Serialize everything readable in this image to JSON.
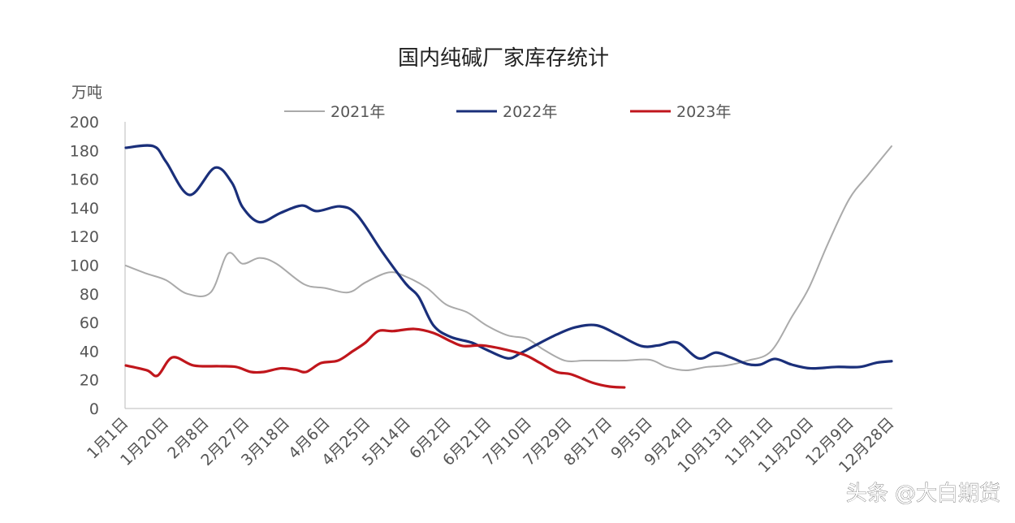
{
  "chart_data": {
    "type": "line",
    "title": "国内纯碱厂家库存统计",
    "ylabel": "万吨",
    "xlabel": "",
    "ylim": [
      0,
      200
    ],
    "yticks": [
      "0",
      "20",
      "40",
      "60",
      "80",
      "100",
      "120",
      "140",
      "160",
      "180",
      "200"
    ],
    "xtick_labels": [
      "1月1日",
      "1月20日",
      "2月8日",
      "2月27日",
      "3月18日",
      "4月6日",
      "4月25日",
      "5月14日",
      "6月2日",
      "6月21日",
      "7月10日",
      "7月29日",
      "8月17日",
      "9月5日",
      "9月24日",
      "10月13日",
      "11月1日",
      "11月20日",
      "12月9日",
      "12月28日"
    ],
    "xticks": [
      "01-01",
      "01-20",
      "02-08",
      "02-27",
      "03-18",
      "04-06",
      "04-25",
      "05-14",
      "06-02",
      "06-21",
      "07-10",
      "07-29",
      "08-17",
      "09-05",
      "09-24",
      "10-13",
      "11-01",
      "11-20",
      "12-09",
      "12-28"
    ],
    "grid": false,
    "legend_position": "top",
    "series": [
      {
        "name": "2021年",
        "color": "#aaaaaa",
        "points": [
          [
            "01-01",
            99.7
          ],
          [
            "01-11",
            94
          ],
          [
            "01-20",
            89.5
          ],
          [
            "01-30",
            80
          ],
          [
            "02-10",
            81
          ],
          [
            "02-18",
            108
          ],
          [
            "02-25",
            101
          ],
          [
            "03-05",
            105
          ],
          [
            "03-13",
            101
          ],
          [
            "03-26",
            86.7
          ],
          [
            "04-05",
            84
          ],
          [
            "04-16",
            81
          ],
          [
            "04-24",
            88
          ],
          [
            "05-05",
            95
          ],
          [
            "05-13",
            92
          ],
          [
            "05-23",
            84
          ],
          [
            "06-01",
            72.5
          ],
          [
            "06-11",
            67
          ],
          [
            "06-20",
            58
          ],
          [
            "06-30",
            51
          ],
          [
            "07-09",
            48.7
          ],
          [
            "07-17",
            41
          ],
          [
            "07-27",
            33.4
          ],
          [
            "08-05",
            33.4
          ],
          [
            "08-15",
            33.4
          ],
          [
            "08-24",
            33.4
          ],
          [
            "09-05",
            34
          ],
          [
            "09-13",
            29
          ],
          [
            "09-22",
            26.6
          ],
          [
            "10-02",
            29
          ],
          [
            "10-11",
            30
          ],
          [
            "10-21",
            33.4
          ],
          [
            "11-01",
            39.7
          ],
          [
            "11-11",
            64
          ],
          [
            "11-19",
            84
          ],
          [
            "11-28",
            115
          ],
          [
            "12-08",
            146
          ],
          [
            "12-17",
            163
          ],
          [
            "12-28",
            183
          ]
        ]
      },
      {
        "name": "2022年",
        "color": "#1a2f7a",
        "points": [
          [
            "01-01",
            181.9
          ],
          [
            "01-14",
            183
          ],
          [
            "01-20",
            172
          ],
          [
            "01-31",
            149
          ],
          [
            "02-12",
            168
          ],
          [
            "02-20",
            157.5
          ],
          [
            "02-25",
            140.5
          ],
          [
            "03-05",
            130
          ],
          [
            "03-15",
            136.5
          ],
          [
            "03-25",
            141.6
          ],
          [
            "04-01",
            137.7
          ],
          [
            "04-12",
            141
          ],
          [
            "04-20",
            135
          ],
          [
            "05-02",
            109
          ],
          [
            "05-13",
            87
          ],
          [
            "05-19",
            78
          ],
          [
            "05-26",
            58
          ],
          [
            "06-03",
            50
          ],
          [
            "06-13",
            46
          ],
          [
            "06-20",
            41
          ],
          [
            "06-30",
            35
          ],
          [
            "07-06",
            38.5
          ],
          [
            "07-13",
            44
          ],
          [
            "07-23",
            51.5
          ],
          [
            "08-01",
            56.7
          ],
          [
            "08-11",
            58
          ],
          [
            "08-21",
            51.5
          ],
          [
            "09-01",
            43.6
          ],
          [
            "09-09",
            44
          ],
          [
            "09-18",
            46
          ],
          [
            "09-28",
            35
          ],
          [
            "10-06",
            39
          ],
          [
            "10-13",
            35.7
          ],
          [
            "10-21",
            31
          ],
          [
            "10-27",
            30.6
          ],
          [
            "11-03",
            34.6
          ],
          [
            "11-11",
            30.6
          ],
          [
            "11-20",
            28
          ],
          [
            "12-02",
            29
          ],
          [
            "12-13",
            29
          ],
          [
            "12-21",
            32
          ],
          [
            "12-28",
            33
          ]
        ]
      },
      {
        "name": "2023年",
        "color": "#c0161c",
        "points": [
          [
            "01-01",
            30
          ],
          [
            "01-11",
            26.6
          ],
          [
            "01-16",
            23
          ],
          [
            "01-23",
            35.7
          ],
          [
            "02-02",
            30
          ],
          [
            "02-14",
            29.5
          ],
          [
            "02-22",
            29
          ],
          [
            "03-01",
            25.5
          ],
          [
            "03-07",
            25.5
          ],
          [
            "03-15",
            28
          ],
          [
            "03-22",
            27
          ],
          [
            "03-27",
            25.5
          ],
          [
            "04-03",
            31.7
          ],
          [
            "04-11",
            33.4
          ],
          [
            "04-18",
            40
          ],
          [
            "04-24",
            46
          ],
          [
            "04-30",
            54
          ],
          [
            "05-07",
            54
          ],
          [
            "05-17",
            55.5
          ],
          [
            "05-26",
            52.7
          ],
          [
            "06-03",
            47
          ],
          [
            "06-09",
            43.6
          ],
          [
            "06-18",
            44
          ],
          [
            "06-28",
            41.4
          ],
          [
            "07-08",
            37.4
          ],
          [
            "07-15",
            32
          ],
          [
            "07-23",
            25.5
          ],
          [
            "07-30",
            23.8
          ],
          [
            "08-09",
            18
          ],
          [
            "08-17",
            15.3
          ],
          [
            "08-24",
            14.7
          ]
        ]
      }
    ]
  },
  "watermark": "头条 @大白期货"
}
